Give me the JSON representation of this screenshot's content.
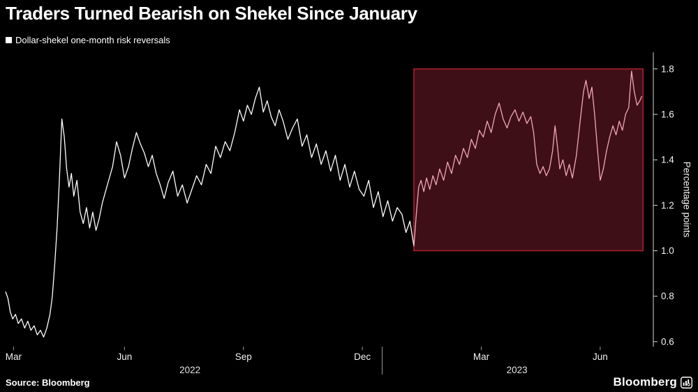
{
  "title": "Traders Turned Bearish on Shekel Since January",
  "legend": {
    "label": "Dollar-shekel one-month risk reversals",
    "marker_color": "#ffffff"
  },
  "source": "Source: Bloomberg",
  "brand": "Bloomberg",
  "colors": {
    "background": "#000000",
    "line": "#ffffff",
    "line_highlight": "#efa9b2",
    "highlight_fill": "#3f0f18",
    "highlight_stroke": "#ad2130",
    "axis": "#d8d8d8"
  },
  "chart_data": {
    "type": "line",
    "title": "Traders Turned Bearish on Shekel Since January",
    "series_name": "Dollar-shekel one-month risk reversals",
    "ylabel": "Percentage points",
    "x_unit": "months since 2022-03-01",
    "xlim": [
      0,
      16.34
    ],
    "ylim": [
      0.578,
      1.873
    ],
    "grid": false,
    "legend_position": "top-left",
    "y_axis_side": "right",
    "y_ticks": [
      {
        "value": 0.6,
        "label": "0.6"
      },
      {
        "value": 0.8,
        "label": "0.8"
      },
      {
        "value": 1.0,
        "label": "1.0"
      },
      {
        "value": 1.2,
        "label": "1.2"
      },
      {
        "value": 1.4,
        "label": "1.4"
      },
      {
        "value": 1.6,
        "label": "1.6"
      },
      {
        "value": 1.8,
        "label": "1.8"
      }
    ],
    "x_ticks": [
      {
        "pos": 0.2,
        "label": "Mar"
      },
      {
        "pos": 3.0,
        "label": "Jun"
      },
      {
        "pos": 6.0,
        "label": "Sep"
      },
      {
        "pos": 9.0,
        "label": "Dec"
      },
      {
        "pos": 12.0,
        "label": "Mar"
      },
      {
        "pos": 15.0,
        "label": "Jun"
      }
    ],
    "year_labels": [
      {
        "pos": 4.65,
        "label": "2022"
      },
      {
        "pos": 12.9,
        "label": "2023"
      }
    ],
    "year_divider_pos": 9.5,
    "line_color": "#ffffff",
    "line_color_highlight": "#efa9b2",
    "highlight": {
      "x_start": 10.3,
      "x_end": 16.08,
      "y_min": 1.0,
      "y_max": 1.8,
      "fill": "#3f0f18",
      "stroke": "#ad2130"
    },
    "points": [
      [
        0.0,
        0.82
      ],
      [
        0.06,
        0.79
      ],
      [
        0.12,
        0.73
      ],
      [
        0.18,
        0.7
      ],
      [
        0.25,
        0.72
      ],
      [
        0.32,
        0.68
      ],
      [
        0.4,
        0.7
      ],
      [
        0.48,
        0.66
      ],
      [
        0.56,
        0.69
      ],
      [
        0.64,
        0.65
      ],
      [
        0.72,
        0.67
      ],
      [
        0.8,
        0.63
      ],
      [
        0.88,
        0.65
      ],
      [
        0.96,
        0.62
      ],
      [
        1.04,
        0.66
      ],
      [
        1.12,
        0.72
      ],
      [
        1.18,
        0.8
      ],
      [
        1.24,
        0.94
      ],
      [
        1.3,
        1.1
      ],
      [
        1.36,
        1.32
      ],
      [
        1.42,
        1.58
      ],
      [
        1.48,
        1.5
      ],
      [
        1.54,
        1.36
      ],
      [
        1.6,
        1.28
      ],
      [
        1.66,
        1.34
      ],
      [
        1.72,
        1.24
      ],
      [
        1.8,
        1.31
      ],
      [
        1.88,
        1.17
      ],
      [
        1.96,
        1.12
      ],
      [
        2.04,
        1.19
      ],
      [
        2.12,
        1.1
      ],
      [
        2.2,
        1.17
      ],
      [
        2.28,
        1.09
      ],
      [
        2.36,
        1.14
      ],
      [
        2.44,
        1.21
      ],
      [
        2.52,
        1.26
      ],
      [
        2.6,
        1.31
      ],
      [
        2.7,
        1.37
      ],
      [
        2.8,
        1.48
      ],
      [
        2.9,
        1.42
      ],
      [
        3.0,
        1.32
      ],
      [
        3.1,
        1.37
      ],
      [
        3.2,
        1.45
      ],
      [
        3.3,
        1.52
      ],
      [
        3.4,
        1.47
      ],
      [
        3.5,
        1.43
      ],
      [
        3.6,
        1.37
      ],
      [
        3.7,
        1.42
      ],
      [
        3.8,
        1.34
      ],
      [
        3.9,
        1.29
      ],
      [
        4.0,
        1.23
      ],
      [
        4.1,
        1.3
      ],
      [
        4.22,
        1.35
      ],
      [
        4.34,
        1.24
      ],
      [
        4.46,
        1.29
      ],
      [
        4.58,
        1.21
      ],
      [
        4.7,
        1.27
      ],
      [
        4.82,
        1.33
      ],
      [
        4.94,
        1.29
      ],
      [
        5.06,
        1.38
      ],
      [
        5.18,
        1.34
      ],
      [
        5.3,
        1.46
      ],
      [
        5.42,
        1.41
      ],
      [
        5.54,
        1.48
      ],
      [
        5.66,
        1.44
      ],
      [
        5.78,
        1.52
      ],
      [
        5.9,
        1.62
      ],
      [
        6.0,
        1.57
      ],
      [
        6.1,
        1.64
      ],
      [
        6.2,
        1.6
      ],
      [
        6.3,
        1.67
      ],
      [
        6.4,
        1.72
      ],
      [
        6.5,
        1.61
      ],
      [
        6.6,
        1.66
      ],
      [
        6.7,
        1.59
      ],
      [
        6.8,
        1.55
      ],
      [
        6.9,
        1.62
      ],
      [
        7.0,
        1.57
      ],
      [
        7.12,
        1.49
      ],
      [
        7.24,
        1.54
      ],
      [
        7.36,
        1.58
      ],
      [
        7.48,
        1.46
      ],
      [
        7.6,
        1.51
      ],
      [
        7.72,
        1.41
      ],
      [
        7.84,
        1.47
      ],
      [
        7.96,
        1.38
      ],
      [
        8.08,
        1.44
      ],
      [
        8.2,
        1.35
      ],
      [
        8.32,
        1.42
      ],
      [
        8.44,
        1.31
      ],
      [
        8.56,
        1.38
      ],
      [
        8.68,
        1.28
      ],
      [
        8.8,
        1.35
      ],
      [
        8.92,
        1.27
      ],
      [
        9.04,
        1.24
      ],
      [
        9.16,
        1.31
      ],
      [
        9.28,
        1.19
      ],
      [
        9.4,
        1.26
      ],
      [
        9.52,
        1.15
      ],
      [
        9.64,
        1.22
      ],
      [
        9.76,
        1.13
      ],
      [
        9.88,
        1.19
      ],
      [
        10.0,
        1.16
      ],
      [
        10.1,
        1.08
      ],
      [
        10.2,
        1.13
      ],
      [
        10.3,
        1.02
      ],
      [
        10.36,
        1.16
      ],
      [
        10.42,
        1.28
      ],
      [
        10.48,
        1.31
      ],
      [
        10.55,
        1.26
      ],
      [
        10.62,
        1.32
      ],
      [
        10.7,
        1.27
      ],
      [
        10.78,
        1.33
      ],
      [
        10.86,
        1.29
      ],
      [
        10.95,
        1.36
      ],
      [
        11.05,
        1.31
      ],
      [
        11.15,
        1.39
      ],
      [
        11.25,
        1.34
      ],
      [
        11.35,
        1.42
      ],
      [
        11.45,
        1.38
      ],
      [
        11.55,
        1.45
      ],
      [
        11.65,
        1.41
      ],
      [
        11.75,
        1.49
      ],
      [
        11.85,
        1.45
      ],
      [
        11.95,
        1.53
      ],
      [
        12.05,
        1.5
      ],
      [
        12.15,
        1.57
      ],
      [
        12.25,
        1.52
      ],
      [
        12.35,
        1.6
      ],
      [
        12.45,
        1.65
      ],
      [
        12.55,
        1.58
      ],
      [
        12.65,
        1.54
      ],
      [
        12.75,
        1.59
      ],
      [
        12.85,
        1.62
      ],
      [
        12.95,
        1.57
      ],
      [
        13.05,
        1.61
      ],
      [
        13.15,
        1.56
      ],
      [
        13.25,
        1.59
      ],
      [
        13.32,
        1.52
      ],
      [
        13.4,
        1.38
      ],
      [
        13.48,
        1.34
      ],
      [
        13.56,
        1.37
      ],
      [
        13.64,
        1.33
      ],
      [
        13.72,
        1.36
      ],
      [
        13.8,
        1.44
      ],
      [
        13.86,
        1.55
      ],
      [
        13.92,
        1.46
      ],
      [
        13.98,
        1.36
      ],
      [
        14.06,
        1.4
      ],
      [
        14.14,
        1.33
      ],
      [
        14.22,
        1.38
      ],
      [
        14.3,
        1.32
      ],
      [
        14.4,
        1.42
      ],
      [
        14.5,
        1.58
      ],
      [
        14.58,
        1.7
      ],
      [
        14.64,
        1.75
      ],
      [
        14.72,
        1.67
      ],
      [
        14.79,
        1.72
      ],
      [
        14.86,
        1.6
      ],
      [
        14.93,
        1.45
      ],
      [
        15.0,
        1.31
      ],
      [
        15.08,
        1.36
      ],
      [
        15.16,
        1.44
      ],
      [
        15.24,
        1.5
      ],
      [
        15.32,
        1.55
      ],
      [
        15.4,
        1.51
      ],
      [
        15.48,
        1.57
      ],
      [
        15.56,
        1.53
      ],
      [
        15.64,
        1.6
      ],
      [
        15.72,
        1.63
      ],
      [
        15.79,
        1.79
      ],
      [
        15.86,
        1.7
      ],
      [
        15.93,
        1.64
      ],
      [
        16.0,
        1.66
      ],
      [
        16.05,
        1.68
      ]
    ]
  }
}
